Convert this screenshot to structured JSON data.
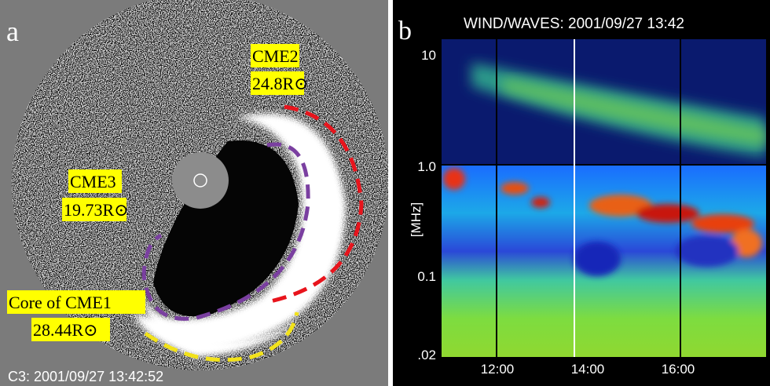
{
  "panel_a": {
    "letter": "a",
    "labels": [
      {
        "name": "CME2",
        "height": "24.8R⊙"
      },
      {
        "name": "CME3",
        "height": "19.73R⊙"
      },
      {
        "name": "Core of CME1",
        "height": "28.44R⊙"
      }
    ],
    "timestamp": "C3: 2001/09/27 13:42:52"
  },
  "panel_b": {
    "letter": "b",
    "title": "WIND/WAVES: 2001/09/27 13:42",
    "y_label": "[MHz]",
    "y_ticks": [
      "10",
      "1.0",
      "0.1",
      ".02"
    ],
    "x_ticks": [
      "12:00",
      "14:00",
      "16:00"
    ]
  }
}
